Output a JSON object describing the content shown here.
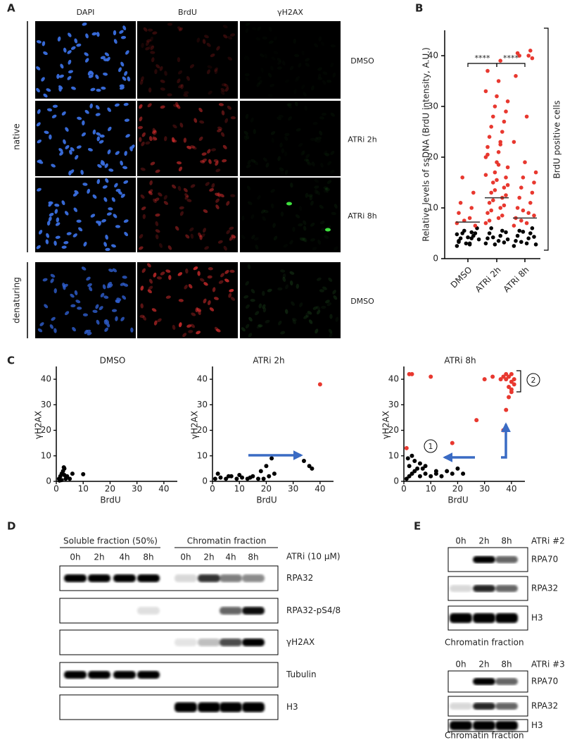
{
  "panel_labels": [
    "A",
    "B",
    "C",
    "D",
    "E"
  ],
  "panel_a": {
    "columns": [
      "DAPI",
      "BrdU",
      "γH2AX"
    ],
    "groups": [
      {
        "label": "native",
        "rows": [
          "DMSO",
          "ATRi 2h",
          "ATRi 8h"
        ]
      },
      {
        "label": "denaturing",
        "rows": [
          "DMSO"
        ]
      }
    ]
  },
  "chart_data": [
    {
      "type": "dotplot",
      "ylabel": "Relative levels of ssDNA (BrdU intensity, A.U.)",
      "categories": [
        "DMSO",
        "ATRi 2h",
        "ATRi 8h"
      ],
      "ylim": [
        0,
        45
      ],
      "yticks": [
        0,
        10,
        20,
        30,
        40
      ],
      "means": [
        7.2,
        12,
        8
      ],
      "series": [
        {
          "color": "#000000",
          "values": [
            [
              2.5,
              3,
              3.5,
              4,
              4,
              4.5,
              5,
              5,
              5.5,
              6,
              3,
              3.8,
              4.2,
              4.8,
              2.8,
              3.3,
              5.2
            ],
            [
              3,
              3.5,
              4,
              4.5,
              5,
              5.5,
              6,
              3.2,
              4.2,
              5.2,
              2.8,
              3.8
            ],
            [
              2.5,
              3,
              3.5,
              4,
              4.5,
              5,
              5.5,
              6,
              3.3,
              4.3,
              5.3,
              2.8
            ]
          ]
        },
        {
          "color": "#e8382f",
          "values": [
            [
              7,
              8,
              9,
              10,
              11,
              13,
              16,
              6.5,
              7.5
            ],
            [
              7,
              8,
              9,
              10,
              11,
              12,
              13,
              14,
              15,
              16,
              17,
              18,
              19,
              20,
              21,
              22,
              23,
              24,
              25,
              26,
              27,
              28,
              29,
              30,
              31,
              32,
              33,
              35,
              37,
              39,
              7.5,
              8.5,
              9.5,
              10.5,
              11.5,
              12.5,
              13.5,
              14.5,
              15.5,
              16.5,
              18.5,
              20.5,
              22.5
            ],
            [
              6.5,
              7,
              8,
              9,
              10,
              11,
              12,
              13,
              14,
              15,
              16,
              17,
              19,
              23,
              28,
              36,
              40,
              40.5,
              41,
              40,
              39.5,
              7.5,
              8.5,
              9.5
            ]
          ]
        }
      ],
      "annotations": [
        "****",
        "****"
      ],
      "bracket_label": "BrdU positive cells"
    },
    {
      "type": "scatter",
      "title": "DMSO",
      "xlabel": "BrdU",
      "ylabel": "γH2AX",
      "xlim": [
        0,
        45
      ],
      "ylim": [
        0,
        45
      ],
      "xticks": [
        0,
        10,
        20,
        30,
        40
      ],
      "yticks": [
        0,
        10,
        20,
        30,
        40
      ],
      "series": [
        {
          "color": "#000000",
          "x": [
            1,
            1.5,
            2,
            2.5,
            3,
            3.5,
            4,
            5,
            2,
            1.2,
            3,
            10,
            6,
            2.8
          ],
          "values": [
            1,
            2,
            3,
            4,
            5,
            1,
            2,
            1,
            0.5,
            0.3,
            2.5,
            2.8,
            3,
            5.5
          ]
        }
      ]
    },
    {
      "type": "scatter",
      "title": "ATRi 2h",
      "xlabel": "BrdU",
      "ylabel": "γH2AX",
      "xlim": [
        0,
        45
      ],
      "ylim": [
        0,
        45
      ],
      "xticks": [
        0,
        10,
        20,
        30,
        40
      ],
      "yticks": [
        0,
        10,
        20,
        30,
        40
      ],
      "series": [
        {
          "color": "#000000",
          "x": [
            1,
            3,
            5,
            7,
            9,
            11,
            13,
            15,
            17,
            19,
            21,
            23,
            2,
            6,
            10,
            14,
            18,
            22,
            20,
            34,
            36,
            37
          ],
          "values": [
            1,
            1.5,
            1,
            2,
            1,
            1.5,
            1,
            2,
            1,
            1,
            2,
            3,
            3,
            2,
            2.5,
            1.5,
            4,
            9,
            6,
            8,
            6,
            5
          ]
        },
        {
          "color": "#e8382f",
          "x": [
            40
          ],
          "values": [
            38
          ]
        }
      ]
    },
    {
      "type": "scatter",
      "title": "ATRi 8h",
      "xlabel": "BrdU",
      "ylabel": "γH2AX",
      "xlim": [
        0,
        45
      ],
      "ylim": [
        0,
        45
      ],
      "xticks": [
        0,
        10,
        20,
        30,
        40
      ],
      "yticks": [
        0,
        10,
        20,
        30,
        40
      ],
      "series": [
        {
          "color": "#000000",
          "x": [
            1,
            2,
            3,
            4,
            5,
            6,
            8,
            10,
            12,
            14,
            16,
            18,
            20,
            22,
            2,
            4,
            6,
            8,
            3,
            1.5,
            7,
            12
          ],
          "values": [
            1,
            2,
            3,
            4,
            5,
            2,
            3,
            2,
            3,
            2,
            4,
            3,
            5,
            3,
            6,
            8,
            7,
            6,
            10,
            9,
            5,
            4
          ]
        },
        {
          "color": "#e8382f",
          "x": [
            1,
            3,
            2,
            10,
            18,
            27,
            30,
            33,
            36,
            37,
            38,
            39,
            40,
            41,
            40,
            39,
            38,
            37,
            40,
            41,
            40,
            38,
            39
          ],
          "values": [
            13,
            42,
            42,
            41,
            15,
            24,
            40,
            41,
            40,
            41,
            40,
            41,
            42,
            40,
            36,
            33,
            28,
            20,
            39,
            38,
            35,
            42,
            37
          ]
        }
      ],
      "annotations": [
        "1",
        "2"
      ]
    }
  ],
  "panel_d": {
    "headers": [
      "Soluble fraction (50%)",
      "Chromatin fraction"
    ],
    "treatment": "ATRi (10 μM)",
    "lanes": [
      "0h",
      "2h",
      "4h",
      "8h",
      "0h",
      "2h",
      "4h",
      "8h"
    ],
    "blots": [
      "RPA32",
      "RPA32-pS4/8",
      "γH2AX",
      "Tubulin",
      "H3"
    ]
  },
  "panel_e": {
    "sets": [
      {
        "treatment": "ATRi #2",
        "lanes": [
          "0h",
          "2h",
          "8h"
        ],
        "blots": [
          "RPA70",
          "RPA32",
          "H3"
        ],
        "caption": "Chromatin fraction"
      },
      {
        "treatment": "ATRi #3",
        "lanes": [
          "0h",
          "2h",
          "8h"
        ],
        "blots": [
          "RPA70",
          "RPA32",
          "H3"
        ],
        "caption": "Chromatin fraction"
      }
    ]
  }
}
